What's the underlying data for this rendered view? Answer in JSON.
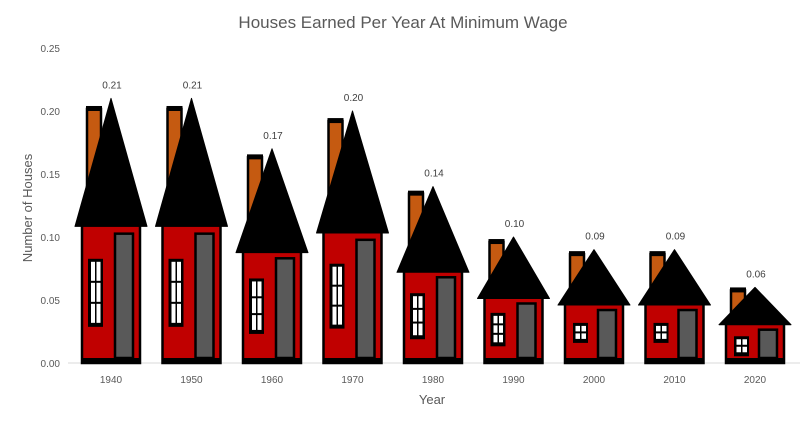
{
  "chart_data": {
    "type": "bar",
    "title": "Houses Earned Per Year At Minimum Wage",
    "xlabel": "Year",
    "ylabel": "Number of Houses",
    "categories": [
      "1940",
      "1950",
      "1960",
      "1970",
      "1980",
      "1990",
      "2000",
      "2010",
      "2020"
    ],
    "values": [
      0.21,
      0.21,
      0.17,
      0.2,
      0.14,
      0.1,
      0.09,
      0.09,
      0.06
    ],
    "data_labels": [
      "0.21",
      "0.21",
      "0.17",
      "0.20",
      "0.14",
      "0.10",
      "0.09",
      "0.09",
      "0.06"
    ],
    "ylim": [
      0,
      0.25
    ],
    "yticks": [
      "0.00",
      "0.05",
      "0.10",
      "0.15",
      "0.20",
      "0.25"
    ],
    "grid": false,
    "legend": "none",
    "mark_style": "house-shaped bars",
    "colors": {
      "wall": "#c00000",
      "roof": "#000000",
      "chimney": "#c55a11",
      "door": "#595959",
      "window": "#ffffff",
      "outline": "#000000",
      "axis_text": "#595959"
    }
  }
}
